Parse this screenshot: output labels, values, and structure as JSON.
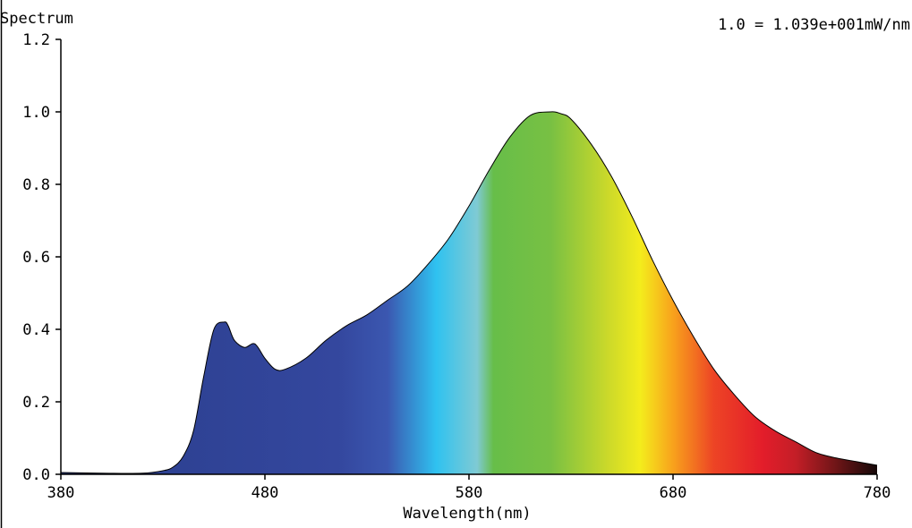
{
  "header": {
    "title": "Spectrum",
    "scale_note": "1.0 = 1.039e+001mW/nm"
  },
  "chart_data": {
    "type": "area",
    "title": "Spectrum",
    "xlabel": "Wavelength(nm)",
    "ylabel": "",
    "xlim": [
      380,
      780
    ],
    "ylim": [
      0.0,
      1.2
    ],
    "x_ticks": [
      380,
      480,
      580,
      680,
      780
    ],
    "x_tick_labels": [
      "380",
      "480",
      "580",
      "680",
      "780"
    ],
    "y_ticks": [
      0.0,
      0.2,
      0.4,
      0.6,
      0.8,
      1.0,
      1.2
    ],
    "y_tick_labels": [
      "0.0",
      "0.2",
      "0.4",
      "0.6",
      "0.8",
      "1.0",
      "1.2"
    ],
    "grid": false,
    "fill": "wavelength-colored spectrum gradient",
    "outline_color": "#000000",
    "x": [
      380,
      400,
      420,
      430,
      435,
      440,
      445,
      450,
      455,
      460,
      462,
      465,
      470,
      475,
      480,
      485,
      490,
      500,
      510,
      520,
      530,
      540,
      550,
      560,
      570,
      580,
      590,
      600,
      610,
      620,
      625,
      630,
      640,
      650,
      660,
      670,
      680,
      690,
      700,
      710,
      720,
      730,
      740,
      750,
      760,
      770,
      780
    ],
    "values": [
      0.005,
      0.003,
      0.003,
      0.01,
      0.02,
      0.05,
      0.12,
      0.27,
      0.4,
      0.42,
      0.41,
      0.37,
      0.35,
      0.36,
      0.32,
      0.29,
      0.29,
      0.32,
      0.37,
      0.41,
      0.44,
      0.48,
      0.52,
      0.58,
      0.65,
      0.74,
      0.84,
      0.93,
      0.99,
      1.0,
      0.995,
      0.98,
      0.91,
      0.82,
      0.71,
      0.59,
      0.48,
      0.38,
      0.29,
      0.22,
      0.16,
      0.12,
      0.09,
      0.06,
      0.045,
      0.035,
      0.025
    ]
  }
}
